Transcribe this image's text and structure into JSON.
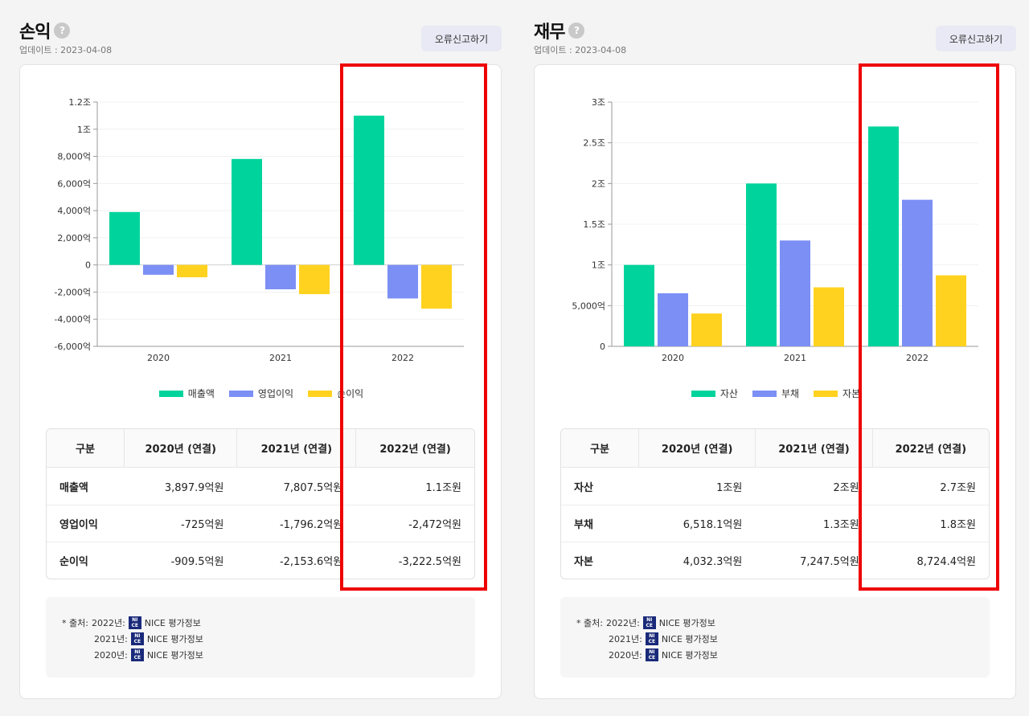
{
  "left": {
    "title": "손익",
    "help": "?",
    "update": "업데이트 : 2023-04-08",
    "report_button": "오류신고하기",
    "chart_data": {
      "type": "bar",
      "categories": [
        "2020",
        "2021",
        "2022"
      ],
      "series": [
        {
          "name": "매출액",
          "color": "#00d49c",
          "values": [
            3897.9,
            7807.5,
            11000
          ]
        },
        {
          "name": "영업이익",
          "color": "#7b8ff5",
          "values": [
            -725,
            -1796.2,
            -2472
          ]
        },
        {
          "name": "순이익",
          "color": "#ffd21f",
          "values": [
            -909.5,
            -2153.6,
            -3222.5
          ]
        }
      ],
      "yticks": [
        12000,
        10000,
        8000,
        6000,
        4000,
        2000,
        0,
        -2000,
        -4000,
        -6000
      ],
      "ytick_labels": [
        "1.2조",
        "1조",
        "8,000억",
        "6,000억",
        "4,000억",
        "2,000억",
        "0",
        "-2,000억",
        "-4,000억",
        "-6,000억"
      ],
      "ylim": [
        -6000,
        12000
      ]
    },
    "table": {
      "headers": [
        "구분",
        "2020년 (연결)",
        "2021년 (연결)",
        "2022년 (연결)"
      ],
      "rows": [
        {
          "label": "매출액",
          "values": [
            "3,897.9억원",
            "7,807.5억원",
            "1.1조원"
          ]
        },
        {
          "label": "영업이익",
          "values": [
            "-725억원",
            "-1,796.2억원",
            "-2,472억원"
          ]
        },
        {
          "label": "순이익",
          "values": [
            "-909.5억원",
            "-2,153.6억원",
            "-3,222.5억원"
          ]
        }
      ]
    }
  },
  "right": {
    "title": "재무",
    "help": "?",
    "update": "업데이트 : 2023-04-08",
    "report_button": "오류신고하기",
    "chart_data": {
      "type": "bar",
      "categories": [
        "2020",
        "2021",
        "2022"
      ],
      "series": [
        {
          "name": "자산",
          "color": "#00d49c",
          "values": [
            10000,
            20000,
            27000
          ]
        },
        {
          "name": "부채",
          "color": "#7b8ff5",
          "values": [
            6518.1,
            13000,
            18000
          ]
        },
        {
          "name": "자본",
          "color": "#ffd21f",
          "values": [
            4032.3,
            7247.5,
            8724.4
          ]
        }
      ],
      "yticks": [
        30000,
        25000,
        20000,
        15000,
        10000,
        5000,
        0
      ],
      "ytick_labels": [
        "3조",
        "2.5조",
        "2조",
        "1.5조",
        "1조",
        "5,000억",
        "0"
      ],
      "ylim": [
        0,
        30000
      ]
    },
    "table": {
      "headers": [
        "구분",
        "2020년 (연결)",
        "2021년 (연결)",
        "2022년 (연결)"
      ],
      "rows": [
        {
          "label": "자산",
          "values": [
            "1조원",
            "2조원",
            "2.7조원"
          ]
        },
        {
          "label": "부채",
          "values": [
            "6,518.1억원",
            "1.3조원",
            "1.8조원"
          ]
        },
        {
          "label": "자본",
          "values": [
            "4,032.3억원",
            "7,247.5억원",
            "8,724.4억원"
          ]
        }
      ]
    }
  },
  "source": {
    "prefix": "* 출처:",
    "years": [
      "2022년:",
      "2021년:",
      "2020년:"
    ],
    "provider": "NICE 평가정보",
    "logo_text": "NI CE"
  },
  "highlight_color": "#ee0000"
}
